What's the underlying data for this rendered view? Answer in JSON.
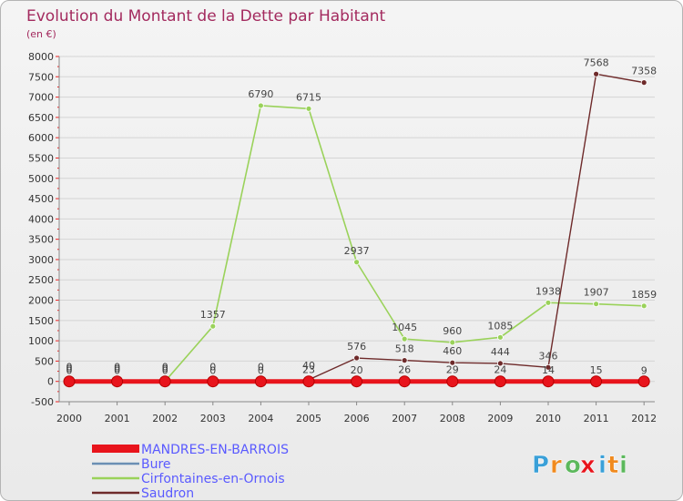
{
  "chart_data": {
    "type": "line",
    "title": "Evolution du Montant de la Dette par Habitant",
    "subtitle": "(en €)",
    "xlabel": "",
    "ylabel": "",
    "ylim": [
      -500,
      8000
    ],
    "yticks": [
      -500,
      0,
      500,
      1000,
      1500,
      2000,
      2500,
      3000,
      3500,
      4000,
      4500,
      5000,
      5500,
      6000,
      6500,
      7000,
      7500,
      8000
    ],
    "categories": [
      "2000",
      "2001",
      "2002",
      "2003",
      "2004",
      "2005",
      "2006",
      "2007",
      "2008",
      "2009",
      "2010",
      "2011",
      "2012"
    ],
    "series": [
      {
        "name": "MANDRES-EN-BARROIS",
        "color": "#e8141c",
        "values": [
          0,
          0,
          0,
          0,
          0,
          0,
          0,
          0,
          0,
          0,
          0,
          0,
          0
        ],
        "labels": [
          null,
          null,
          null,
          null,
          null,
          null,
          null,
          null,
          null,
          null,
          null,
          null,
          null
        ]
      },
      {
        "name": "Bure",
        "color": "#6b8fb4",
        "values": [
          0,
          0,
          0,
          0,
          0,
          23,
          20,
          26,
          29,
          24,
          14,
          15,
          9
        ],
        "labels": [
          "0",
          "0",
          "0",
          "0",
          "0",
          "23",
          "20",
          "26",
          "29",
          "24",
          "14",
          "15",
          "9"
        ]
      },
      {
        "name": "Cirfontaines-en-Ornois",
        "color": "#9ad25a",
        "values": [
          0,
          0,
          0,
          1357,
          6790,
          6715,
          2937,
          1045,
          960,
          1085,
          1938,
          1907,
          1859
        ],
        "labels": [
          "0",
          "0",
          "0",
          "1357",
          "6790",
          "6715",
          "2937",
          "1045",
          "960",
          "1085",
          "1938",
          "1907",
          "1859"
        ]
      },
      {
        "name": "Saudron",
        "color": "#6e2a2a",
        "values": [
          0,
          0,
          0,
          0,
          0,
          40,
          576,
          518,
          460,
          444,
          346,
          7568,
          7358
        ],
        "labels": [
          "0",
          "0",
          "0",
          "0",
          "0",
          "40",
          "576",
          "518",
          "460",
          "444",
          "346",
          "7568",
          "7358"
        ]
      }
    ]
  },
  "brand": {
    "name": "Proxiti",
    "letters": [
      "P",
      "r",
      "o",
      "x",
      "i",
      "t",
      "i"
    ]
  }
}
